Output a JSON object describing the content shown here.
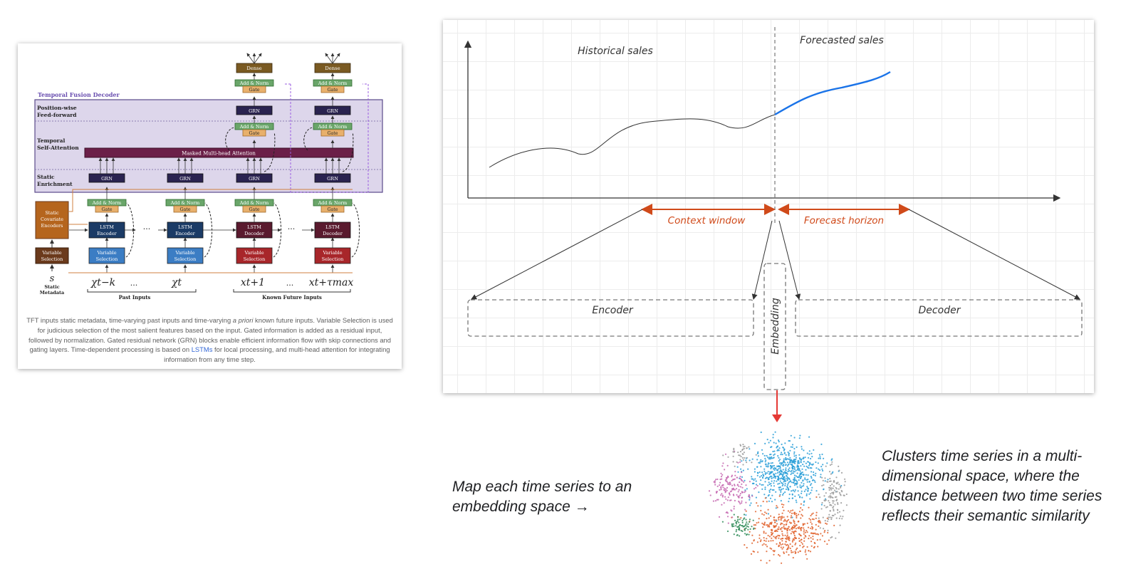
{
  "tft": {
    "title": "Temporal Fusion Decoder",
    "layers": {
      "position_wise": "Position-wise",
      "feed_forward": "Feed-forward",
      "temporal": "Temporal",
      "self_attention": "Self-Attention",
      "static": "Static",
      "enrichment": "Enrichment"
    },
    "blocks": {
      "dense": "Dense",
      "add_norm": "Add & Norm",
      "gate": "Gate",
      "grn": "GRN",
      "mha": "Masked Multi-head Attention",
      "lstm_encoder": "LSTM Encoder",
      "lstm_decoder": "LSTM Decoder",
      "variable_selection": "Variable Selection",
      "static_covariate": "Static Covariate Encoders",
      "ellipsis": "···"
    },
    "inputs": {
      "s": "s",
      "static_metadata": "Static Metadata",
      "past_inputs": "Past Inputs",
      "known_future": "Known Future Inputs",
      "x1": "χt−k",
      "x2": "χt",
      "x3": "xt+1",
      "x4": "xt+τmax",
      "dots": "..."
    },
    "caption_parts": {
      "p1": "TFT inputs static metadata, time-varying past inputs and time-varying ",
      "p1_italic": "a priori",
      "p2": " known future inputs. Variable Selection is used for judicious selection of the most salient features based on the input. Gated information is added as a residual input, followed by normalization. Gated residual network (GRN) blocks enable efficient information flow with skip connections and gating layers. Time-dependent processing is based on ",
      "link": "LSTMs",
      "p3": " for local processing, and multi-head attention for integrating information from any time step."
    },
    "colors": {
      "purple_bg": "#dcd5ea",
      "dense": "#7a5a22",
      "add_norm": "#6aa66a",
      "gate": "#e8b06c",
      "grn": "#2a2350",
      "mha": "#6b1f48",
      "encoder": "#1b3b66",
      "decoder": "#5a1a2e",
      "vs_blue": "#3b7dc4",
      "vs_red": "#a8262a",
      "vs_static": "#6b3a1c",
      "static_enc": "#b5651d"
    }
  },
  "sketch": {
    "historical": "Historical sales",
    "forecasted": "Forecasted sales",
    "context_window": "Context window",
    "forecast_horizon": "Forecast horizon",
    "encoder": "Encoder",
    "decoder": "Decoder",
    "embedding": "Embedding",
    "colors": {
      "arrow_orange": "#d04a1a",
      "forecast_line": "#1a73e8",
      "red_arrow": "#e53935"
    }
  },
  "notes": {
    "left": "Map each time series to an embedding space →",
    "right": "Clusters time series in a multi-dimensional space, where the distance between two time series reflects their semantic similarity"
  },
  "scatter": {
    "cluster_colors": [
      "#2a9fd8",
      "#e1612c",
      "#c567b0",
      "#9a9a9a",
      "#2e8b57"
    ]
  }
}
